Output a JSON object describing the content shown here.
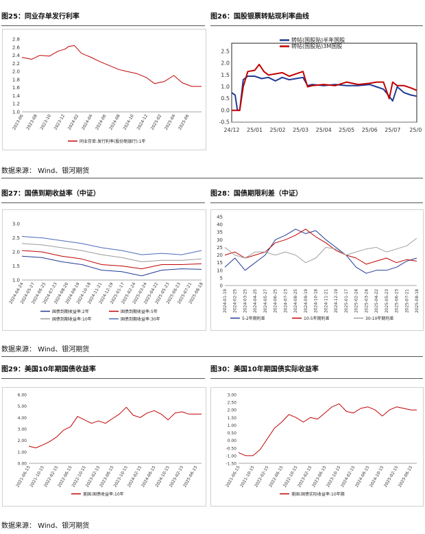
{
  "sections": [
    {
      "left_title": "图25：同业存单发行利率",
      "right_title": "图26：国股银票转贴现利率曲线",
      "source": "数据来源：  Wind、银河期货"
    },
    {
      "left_title": "图27：国债到期收益率（中证）",
      "right_title": "图28：国债期限利差（中证）",
      "source": "数据来源：  Wind、银河期货"
    },
    {
      "left_title": "图29：美国10年期国债收益率",
      "right_title": "图30：美国10年期国债实际收益率",
      "source": "数据来源：  Wind、银河期货"
    }
  ],
  "chart_data": [
    {
      "id": "c25",
      "type": "line",
      "title": "",
      "xlabel": "",
      "ylabel": "",
      "ylim": [
        1.0,
        2.8
      ],
      "yticks": [
        "2.8",
        "2.6",
        "2.4",
        "2.2",
        "2.0",
        "1.8",
        "1.6",
        "1.4",
        "1.2",
        "1.0"
      ],
      "x_tick_labels": [
        "2023-06",
        "2023-08",
        "2023-10",
        "2023-12",
        "2024-02",
        "2024-04",
        "2024-06",
        "2024-08",
        "2024-10",
        "2024-12",
        "2025-02",
        "2025-04",
        "2025-06"
      ],
      "grid": false,
      "legend": "bottom",
      "series": [
        {
          "name": "同业存单:发行利率(股份制银行):1年",
          "color": "#c00000",
          "x": [
            0,
            0.7,
            1.3,
            2,
            2.6,
            3.1,
            3.4,
            3.8,
            4.3,
            5,
            5.6,
            6.3,
            7,
            7.6,
            8.3,
            9,
            9.6,
            10.3,
            11,
            11.6,
            12.3,
            13
          ],
          "y": [
            2.35,
            2.3,
            2.4,
            2.38,
            2.5,
            2.55,
            2.62,
            2.64,
            2.45,
            2.35,
            2.25,
            2.15,
            2.05,
            2.0,
            1.95,
            1.85,
            1.7,
            1.75,
            1.9,
            1.72,
            1.63,
            1.63
          ]
        }
      ]
    },
    {
      "id": "c26",
      "type": "line",
      "title": "",
      "xlabel": "",
      "ylabel": "",
      "ylim": [
        -0.5,
        2.5
      ],
      "yticks": [
        "2.5",
        "2.0",
        "1.5",
        "1.0",
        "0.5",
        "0.0",
        "-0.5"
      ],
      "x_tick_labels": [
        "24/12",
        "25/01",
        "25/02",
        "25/03",
        "25/04",
        "25/05",
        "25/06",
        "25/07",
        "25/0"
      ],
      "grid": false,
      "legend": "top-left",
      "series": [
        {
          "name": "转帖(国股贴)半年国股",
          "color": "#1f3a93",
          "x": [
            0,
            0.15,
            0.25,
            0.35,
            0.5,
            0.7,
            1,
            1.3,
            1.6,
            1.9,
            2.2,
            2.5,
            2.8,
            3.1,
            3.3,
            3.5,
            4,
            4.5,
            5,
            5.5,
            6,
            6.3,
            6.6,
            6.85,
            7,
            7.2,
            7.5,
            7.8,
            8.05
          ],
          "y": [
            0.75,
            0.65,
            0.0,
            0.0,
            1.3,
            1.45,
            1.45,
            1.35,
            1.4,
            1.25,
            1.4,
            1.3,
            1.35,
            1.4,
            1.05,
            1.1,
            1.05,
            1.1,
            1.05,
            1.05,
            1.1,
            1.0,
            0.9,
            0.6,
            0.4,
            1.0,
            0.75,
            0.65,
            0.6
          ]
        },
        {
          "name": "转帖(国股贴)3M国股",
          "color": "#c00000",
          "x": [
            0,
            0.15,
            0.25,
            0.35,
            0.5,
            0.7,
            1,
            1.2,
            1.4,
            1.6,
            1.9,
            2.2,
            2.5,
            2.8,
            3.1,
            3.3,
            3.5,
            4,
            4.5,
            5,
            5.5,
            6,
            6.3,
            6.6,
            6.85,
            7,
            7.2,
            7.5,
            7.8,
            8.05
          ],
          "y": [
            0.0,
            0.0,
            0.0,
            0.0,
            1.0,
            1.65,
            1.7,
            1.95,
            1.65,
            1.5,
            1.55,
            1.6,
            1.45,
            1.55,
            1.65,
            1.0,
            1.05,
            1.1,
            1.05,
            1.2,
            1.1,
            1.15,
            1.2,
            1.2,
            0.5,
            1.2,
            1.05,
            1.05,
            0.95,
            0.85
          ]
        }
      ]
    },
    {
      "id": "c27",
      "type": "line",
      "title": "",
      "xlabel": "",
      "ylabel": "",
      "ylim": [
        1.0,
        3.0
      ],
      "yticks": [
        "3.0",
        "2.5",
        "2.0",
        "1.5",
        "1.0"
      ],
      "x_tick_labels": [
        "2024-04-24",
        "2024-05-27",
        "2024-06-25",
        "2024-07-23",
        "2024-08-20",
        "2024-09-19",
        "2024-10-18",
        "2024-11-21",
        "2024-12-19",
        "2025-01-17",
        "2025-02-24",
        "2025-03-24",
        "2025-04-22",
        "2025-05-23",
        "2025-06-23",
        "2025-07-21",
        "2025-08-18"
      ],
      "grid": false,
      "legend": "bottom",
      "series": [
        {
          "name": "国债到期收益率:2年",
          "color": "#1f3a93",
          "x": [
            0,
            2,
            4,
            6,
            8,
            10,
            12,
            14,
            16,
            18
          ],
          "y": [
            1.85,
            1.8,
            1.65,
            1.55,
            1.35,
            1.3,
            1.15,
            1.35,
            1.4,
            1.38
          ]
        },
        {
          "name": "国债到期收益率:5年",
          "color": "#c00000",
          "x": [
            0,
            2,
            4,
            6,
            8,
            10,
            12,
            14,
            16,
            18
          ],
          "y": [
            2.05,
            2.0,
            1.85,
            1.75,
            1.55,
            1.5,
            1.4,
            1.55,
            1.55,
            1.58
          ]
        },
        {
          "name": "国债到期收益率:10年",
          "color": "#999999",
          "x": [
            0,
            2,
            4,
            6,
            8,
            10,
            12,
            14,
            16,
            18
          ],
          "y": [
            2.3,
            2.25,
            2.15,
            2.05,
            1.9,
            1.8,
            1.65,
            1.7,
            1.7,
            1.75
          ]
        },
        {
          "name": "国债到期收益率:30年",
          "color": "#4a69b8",
          "x": [
            0,
            2,
            4,
            6,
            8,
            10,
            12,
            14,
            16,
            18
          ],
          "y": [
            2.55,
            2.5,
            2.4,
            2.3,
            2.15,
            2.05,
            1.9,
            1.95,
            1.9,
            2.05
          ]
        }
      ]
    },
    {
      "id": "c28",
      "type": "line",
      "title": "",
      "xlabel": "",
      "ylabel": "",
      "ylim": [
        0,
        45
      ],
      "yticks": [
        "45",
        "40",
        "35",
        "30",
        "25",
        "20",
        "15",
        "10",
        "5",
        "0"
      ],
      "x_tick_labels": [
        "2024-01-19",
        "2024-02-25",
        "2024-03-25",
        "2024-04-25",
        "2024-05-27",
        "2024-06-25",
        "2024-07-23",
        "2024-08-25",
        "2024-09-19",
        "2024-10-18",
        "2024-11-21",
        "2024-12-19",
        "2025-01-17",
        "2025-02-24",
        "2025-03-24",
        "2025-04-22",
        "2025-05-23",
        "2025-06-23",
        "2025-07-21",
        "2025-08-18"
      ],
      "grid": false,
      "legend": "bottom",
      "series": [
        {
          "name": "5-2年期利差",
          "color": "#1f3a93",
          "x": [
            0,
            1,
            2,
            3,
            4,
            5,
            6,
            7,
            8,
            9,
            10,
            11,
            12,
            13,
            14,
            15,
            16,
            17,
            18,
            19
          ],
          "y": [
            12,
            18,
            10,
            15,
            20,
            30,
            33,
            37,
            34,
            36,
            30,
            25,
            20,
            12,
            8,
            10,
            10,
            12,
            16,
            18
          ]
        },
        {
          "name": "10-5年期利差",
          "color": "#c00000",
          "x": [
            0,
            1,
            2,
            3,
            4,
            5,
            6,
            7,
            8,
            9,
            10,
            11,
            12,
            13,
            14,
            15,
            16,
            17,
            18,
            19
          ],
          "y": [
            20,
            22,
            18,
            20,
            22,
            28,
            30,
            33,
            37,
            32,
            28,
            23,
            20,
            18,
            14,
            16,
            18,
            15,
            17,
            16
          ]
        },
        {
          "name": "30-10年期利差",
          "color": "#a0a0a0",
          "x": [
            0,
            1,
            2,
            3,
            4,
            5,
            6,
            7,
            8,
            9,
            10,
            11,
            12,
            13,
            14,
            15,
            16,
            17,
            18,
            19
          ],
          "y": [
            25,
            20,
            18,
            22,
            22,
            20,
            22,
            20,
            15,
            18,
            25,
            24,
            20,
            22,
            24,
            25,
            22,
            24,
            26,
            31
          ]
        }
      ]
    },
    {
      "id": "c29",
      "type": "line",
      "title": "",
      "xlabel": "",
      "ylabel": "",
      "ylim": [
        0.0,
        6.0
      ],
      "yticks": [
        "6.00",
        "5.00",
        "4.00",
        "3.00",
        "2.00",
        "1.00",
        "0.00"
      ],
      "x_tick_labels": [
        "2021-06-15",
        "2021-10-15",
        "2022-02-15",
        "2022-06-15",
        "2022-10-15",
        "2023-02-15",
        "2023-06-15",
        "2023-10-15",
        "2024-02-15",
        "2024-06-15",
        "2024-10-15",
        "2025-02-15",
        "2025-06-15"
      ],
      "grid": false,
      "legend": "bottom",
      "series": [
        {
          "name": "美国:国债收益率:10年",
          "color": "#c00000",
          "x": [
            0,
            0.5,
            1,
            1.5,
            2,
            2.5,
            3,
            3.5,
            4,
            4.5,
            5,
            5.5,
            6,
            6.5,
            7,
            7.5,
            8,
            8.5,
            9,
            9.5,
            10,
            10.5,
            11,
            11.5,
            12,
            12.4
          ],
          "y": [
            1.5,
            1.35,
            1.6,
            1.9,
            2.3,
            2.9,
            3.2,
            4.1,
            3.8,
            3.5,
            3.7,
            3.5,
            3.9,
            4.3,
            4.9,
            4.2,
            4.0,
            4.4,
            4.6,
            4.3,
            3.8,
            4.4,
            4.5,
            4.3,
            4.3,
            4.3
          ]
        }
      ]
    },
    {
      "id": "c30",
      "type": "line",
      "title": "",
      "xlabel": "",
      "ylabel": "",
      "ylim": [
        -1.5,
        3.0
      ],
      "yticks": [
        "3.00",
        "2.50",
        "2.00",
        "1.50",
        "1.00",
        "0.50",
        "0.00",
        "-0.50",
        "-1.00",
        "-1.50"
      ],
      "x_tick_labels": [
        "2021-06-15",
        "2021-10-15",
        "2022-02-15",
        "2022-06-15",
        "2022-10-15",
        "2023-02-15",
        "2023-06-15",
        "2023-10-15",
        "2024-02-15",
        "2024-06-15",
        "2024-10-15",
        "2025-02-15",
        "2025-06-15"
      ],
      "grid": false,
      "legend": "bottom",
      "series": [
        {
          "name": "美国:国债实际收益率:10年期",
          "color": "#c00000",
          "x": [
            0,
            0.5,
            1,
            1.5,
            2,
            2.5,
            3,
            3.5,
            4,
            4.5,
            5,
            5.5,
            6,
            6.5,
            7,
            7.5,
            8,
            8.5,
            9,
            9.5,
            10,
            10.5,
            11,
            11.5,
            12,
            12.4
          ],
          "y": [
            -0.8,
            -1.0,
            -1.0,
            -0.6,
            0.1,
            0.8,
            1.2,
            1.7,
            1.5,
            1.2,
            1.5,
            1.4,
            1.8,
            2.2,
            2.4,
            1.9,
            1.8,
            2.1,
            2.2,
            2.0,
            1.6,
            2.0,
            2.2,
            2.1,
            2.0,
            2.0
          ]
        }
      ]
    }
  ]
}
